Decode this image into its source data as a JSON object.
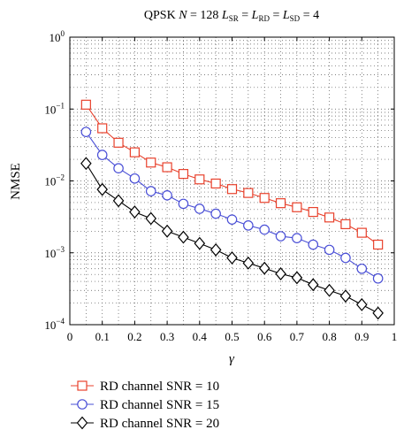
{
  "chart_data": {
    "type": "line",
    "title_parts": {
      "prefix": "QPSK ",
      "N_symbol": "N",
      "N_eq": " = 128 ",
      "L_symbol": "L",
      "sub_sr": "SR",
      "sub_rd": "RD",
      "sub_sd": "SD",
      "eq": " = ",
      "value": "4"
    },
    "xlabel": "γ",
    "ylabel": "NMSE",
    "yscale": "log",
    "xlim": [
      0.0,
      1.0
    ],
    "ylim": [
      0.0001,
      1
    ],
    "xticks": [
      "0",
      "0.1",
      "0.2",
      "0.3",
      "0.4",
      "0.5",
      "0.6",
      "0.7",
      "0.8",
      "0.9",
      "1"
    ],
    "yticks": [
      {
        "base": "10",
        "exp": "0"
      },
      {
        "base": "10",
        "exp": "−1"
      },
      {
        "base": "10",
        "exp": "−2"
      },
      {
        "base": "10",
        "exp": "−3"
      },
      {
        "base": "10",
        "exp": "−4"
      }
    ],
    "grid": true,
    "legend_position": "bottom-left-outside",
    "x": [
      0.05,
      0.1,
      0.15,
      0.2,
      0.25,
      0.3,
      0.35,
      0.4,
      0.45,
      0.5,
      0.55,
      0.6,
      0.65,
      0.7,
      0.75,
      0.8,
      0.85,
      0.9,
      0.95
    ],
    "series": [
      {
        "name": "RD channel SNR = 10",
        "color": "#e8412c",
        "marker": "square",
        "values": [
          0.115,
          0.054,
          0.034,
          0.025,
          0.018,
          0.0155,
          0.0125,
          0.0105,
          0.0092,
          0.0077,
          0.0068,
          0.0058,
          0.0049,
          0.0043,
          0.0037,
          0.0031,
          0.0025,
          0.0019,
          0.0013
        ]
      },
      {
        "name": "RD channel SNR = 15",
        "color": "#4a4fd6",
        "marker": "circle",
        "values": [
          0.048,
          0.023,
          0.015,
          0.0108,
          0.0072,
          0.0063,
          0.0048,
          0.0041,
          0.0035,
          0.0029,
          0.0024,
          0.0021,
          0.0017,
          0.0016,
          0.0013,
          0.0011,
          0.00085,
          0.0006,
          0.00044
        ]
      },
      {
        "name": "RD channel SNR = 20",
        "color": "#000000",
        "marker": "diamond",
        "values": [
          0.0175,
          0.0076,
          0.0053,
          0.0037,
          0.003,
          0.002,
          0.00165,
          0.00135,
          0.0011,
          0.00085,
          0.00072,
          0.00061,
          0.00051,
          0.00045,
          0.00036,
          0.0003,
          0.00025,
          0.00019,
          0.000145
        ]
      }
    ]
  }
}
